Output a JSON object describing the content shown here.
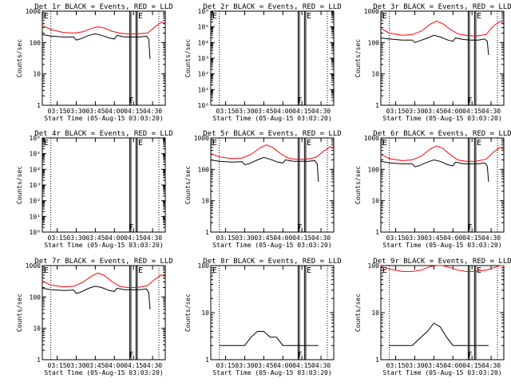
{
  "x_tick_labels": [
    "03:15",
    "03:30",
    "03:45",
    "04:00",
    "04:15",
    "04:30"
  ],
  "x_axis_label": "Start Time (05-Aug-15 03:03:20)",
  "y_axis_label": "Counts/sec",
  "flag_letters": {
    "start": "E",
    "f": "F",
    "end": "E"
  },
  "colors": {
    "events": "#000000",
    "lld": "#ff0000",
    "axes": "#000000"
  },
  "chart_data": [
    {
      "type": "line",
      "title": "Det 1r BLACK = Events, RED = LLD",
      "ylog": true,
      "ylim": [
        1,
        1000
      ],
      "ytick_labels": [
        "1",
        "10",
        "100",
        "1000"
      ],
      "xlim": [
        "03:03:20",
        "04:40:00"
      ],
      "series": [
        {
          "color": "#ff0000",
          "points": [
            [
              "03:03:20",
              350
            ],
            [
              "03:10",
              260
            ],
            [
              "03:20",
              210
            ],
            [
              "03:28",
              200
            ],
            [
              "03:35",
              220
            ],
            [
              "03:42",
              280
            ],
            [
              "03:47",
              320
            ],
            [
              "03:52",
              290
            ],
            [
              "03:58",
              230
            ],
            [
              "04:04",
              200
            ],
            [
              "04:10",
              190
            ],
            [
              "04:18",
              190
            ],
            [
              "04:26",
              200
            ],
            [
              "04:32",
              320
            ],
            [
              "04:37",
              450
            ],
            [
              "04:40",
              400
            ]
          ]
        },
        {
          "color": "#000000",
          "points": [
            [
              "03:03:20",
              180
            ],
            [
              "03:10",
              160
            ],
            [
              "03:20",
              150
            ],
            [
              "03:28",
              150
            ],
            [
              "03:30",
              120
            ],
            [
              "03:33",
              130
            ],
            [
              "03:40",
              170
            ],
            [
              "03:45",
              190
            ],
            [
              "03:50",
              170
            ],
            [
              "03:56",
              140
            ],
            [
              "04:00",
              130
            ],
            [
              "04:02",
              170
            ],
            [
              "04:08",
              150
            ],
            [
              "04:14",
              150
            ],
            [
              "04:20",
              150
            ],
            [
              "04:25",
              160
            ],
            [
              "04:27",
              130
            ],
            [
              "04:28",
              30
            ]
          ]
        }
      ]
    },
    {
      "type": "line",
      "title": "Det 2r BLACK = Events, RED = LLD",
      "ylog": true,
      "ylim": [
        1,
        1000000
      ],
      "ytick_labels": [
        "10⁰",
        "10¹",
        "10²",
        "10³",
        "10⁴",
        "10⁵",
        "10⁶"
      ],
      "xlim": [
        "03:03:20",
        "04:40:00"
      ],
      "series": []
    },
    {
      "type": "line",
      "title": "Det 3r BLACK = Events, RED = LLD",
      "ylog": true,
      "ylim": [
        1,
        1000
      ],
      "ytick_labels": [
        "1",
        "10",
        "100",
        "1000"
      ],
      "xlim": [
        "03:03:20",
        "04:40:00"
      ],
      "series": [
        {
          "color": "#ff0000",
          "points": [
            [
              "03:03:20",
              280
            ],
            [
              "03:10",
              200
            ],
            [
              "03:20",
              170
            ],
            [
              "03:28",
              180
            ],
            [
              "03:35",
              230
            ],
            [
              "03:42",
              380
            ],
            [
              "03:47",
              480
            ],
            [
              "03:52",
              400
            ],
            [
              "03:58",
              260
            ],
            [
              "04:04",
              190
            ],
            [
              "04:10",
              170
            ],
            [
              "04:18",
              160
            ],
            [
              "04:26",
              180
            ],
            [
              "04:32",
              340
            ],
            [
              "04:37",
              470
            ],
            [
              "04:40",
              420
            ]
          ]
        },
        {
          "color": "#000000",
          "points": [
            [
              "03:03:20",
              140
            ],
            [
              "03:10",
              130
            ],
            [
              "03:20",
              120
            ],
            [
              "03:28",
              120
            ],
            [
              "03:30",
              100
            ],
            [
              "03:33",
              110
            ],
            [
              "03:40",
              140
            ],
            [
              "03:45",
              170
            ],
            [
              "03:50",
              150
            ],
            [
              "03:56",
              120
            ],
            [
              "04:00",
              110
            ],
            [
              "04:02",
              140
            ],
            [
              "04:08",
              125
            ],
            [
              "04:14",
              120
            ],
            [
              "04:20",
              120
            ],
            [
              "04:25",
              130
            ],
            [
              "04:27",
              110
            ],
            [
              "04:28",
              40
            ]
          ]
        }
      ]
    },
    {
      "type": "line",
      "title": "Det 4r BLACK = Events, RED = LLD",
      "ylog": true,
      "ylim": [
        1,
        1000000
      ],
      "ytick_labels": [
        "10⁰",
        "10¹",
        "10²",
        "10³",
        "10⁴",
        "10⁵",
        "10⁶"
      ],
      "xlim": [
        "03:03:20",
        "04:40:00"
      ],
      "series": []
    },
    {
      "type": "line",
      "title": "Det 5r BLACK = Events, RED = LLD",
      "ylog": true,
      "ylim": [
        1,
        1000
      ],
      "ytick_labels": [
        "1",
        "10",
        "100",
        "1000"
      ],
      "xlim": [
        "03:03:20",
        "04:40:00"
      ],
      "series": [
        {
          "color": "#ff0000",
          "points": [
            [
              "03:03:20",
              320
            ],
            [
              "03:10",
              250
            ],
            [
              "03:20",
              220
            ],
            [
              "03:28",
              230
            ],
            [
              "03:35",
              300
            ],
            [
              "03:42",
              480
            ],
            [
              "03:47",
              600
            ],
            [
              "03:52",
              500
            ],
            [
              "03:58",
              320
            ],
            [
              "04:04",
              230
            ],
            [
              "04:10",
              210
            ],
            [
              "04:18",
              210
            ],
            [
              "04:26",
              240
            ],
            [
              "04:32",
              380
            ],
            [
              "04:37",
              520
            ],
            [
              "04:40",
              460
            ]
          ]
        },
        {
          "color": "#000000",
          "points": [
            [
              "03:03:20",
              200
            ],
            [
              "03:10",
              180
            ],
            [
              "03:20",
              170
            ],
            [
              "03:28",
              175
            ],
            [
              "03:30",
              140
            ],
            [
              "03:33",
              150
            ],
            [
              "03:40",
              200
            ],
            [
              "03:45",
              240
            ],
            [
              "03:50",
              210
            ],
            [
              "03:56",
              170
            ],
            [
              "04:00",
              160
            ],
            [
              "04:02",
              200
            ],
            [
              "04:08",
              180
            ],
            [
              "04:14",
              180
            ],
            [
              "04:20",
              180
            ],
            [
              "04:25",
              190
            ],
            [
              "04:27",
              150
            ],
            [
              "04:28",
              40
            ]
          ]
        }
      ]
    },
    {
      "type": "line",
      "title": "Det 6r BLACK = Events, RED = LLD",
      "ylog": true,
      "ylim": [
        1,
        1000
      ],
      "ytick_labels": [
        "1",
        "10",
        "100",
        "1000"
      ],
      "xlim": [
        "03:03:20",
        "04:40:00"
      ],
      "series": [
        {
          "color": "#ff0000",
          "points": [
            [
              "03:03:20",
              300
            ],
            [
              "03:10",
              220
            ],
            [
              "03:20",
              190
            ],
            [
              "03:28",
              200
            ],
            [
              "03:35",
              260
            ],
            [
              "03:42",
              440
            ],
            [
              "03:47",
              560
            ],
            [
              "03:52",
              470
            ],
            [
              "03:58",
              290
            ],
            [
              "04:04",
              200
            ],
            [
              "04:10",
              180
            ],
            [
              "04:18",
              180
            ],
            [
              "04:26",
              210
            ],
            [
              "04:32",
              360
            ],
            [
              "04:37",
              500
            ],
            [
              "04:40",
              440
            ]
          ]
        },
        {
          "color": "#000000",
          "points": [
            [
              "03:03:20",
              180
            ],
            [
              "03:10",
              160
            ],
            [
              "03:20",
              150
            ],
            [
              "03:28",
              150
            ],
            [
              "03:30",
              120
            ],
            [
              "03:33",
              130
            ],
            [
              "03:40",
              170
            ],
            [
              "03:45",
              200
            ],
            [
              "03:50",
              180
            ],
            [
              "03:56",
              140
            ],
            [
              "04:00",
              130
            ],
            [
              "04:02",
              170
            ],
            [
              "04:08",
              150
            ],
            [
              "04:14",
              150
            ],
            [
              "04:20",
              150
            ],
            [
              "04:25",
              160
            ],
            [
              "04:27",
              130
            ],
            [
              "04:28",
              40
            ]
          ]
        }
      ]
    },
    {
      "type": "line",
      "title": "Det 7r BLACK = Events, RED = LLD",
      "ylog": true,
      "ylim": [
        1,
        1000
      ],
      "ytick_labels": [
        "1",
        "10",
        "100",
        "1000"
      ],
      "xlim": [
        "03:03:20",
        "04:40:00"
      ],
      "series": [
        {
          "color": "#ff0000",
          "points": [
            [
              "03:03:20",
              320
            ],
            [
              "03:10",
              240
            ],
            [
              "03:20",
              210
            ],
            [
              "03:28",
              220
            ],
            [
              "03:35",
              290
            ],
            [
              "03:42",
              460
            ],
            [
              "03:47",
              580
            ],
            [
              "03:52",
              490
            ],
            [
              "03:58",
              310
            ],
            [
              "04:04",
              220
            ],
            [
              "04:10",
              200
            ],
            [
              "04:18",
              200
            ],
            [
              "04:26",
              230
            ],
            [
              "04:32",
              370
            ],
            [
              "04:37",
              500
            ],
            [
              "04:40",
              450
            ]
          ]
        },
        {
          "color": "#000000",
          "points": [
            [
              "03:03:20",
              190
            ],
            [
              "03:10",
              170
            ],
            [
              "03:20",
              160
            ],
            [
              "03:28",
              165
            ],
            [
              "03:30",
              130
            ],
            [
              "03:33",
              140
            ],
            [
              "03:40",
              190
            ],
            [
              "03:45",
              220
            ],
            [
              "03:50",
              200
            ],
            [
              "03:56",
              160
            ],
            [
              "04:00",
              150
            ],
            [
              "04:02",
              190
            ],
            [
              "04:08",
              170
            ],
            [
              "04:14",
              170
            ],
            [
              "04:20",
              170
            ],
            [
              "04:25",
              180
            ],
            [
              "04:27",
              140
            ],
            [
              "04:28",
              40
            ]
          ]
        }
      ]
    },
    {
      "type": "line",
      "title": "Det 8r BLACK = Events, RED = LLD",
      "ylog": true,
      "ylim": [
        1,
        100
      ],
      "ytick_labels": [
        "1",
        "10",
        "100"
      ],
      "xlim": [
        "03:03:20",
        "04:40:00"
      ],
      "series": [
        {
          "color": "#000000",
          "points": [
            [
              "03:10",
              2
            ],
            [
              "03:20",
              2
            ],
            [
              "03:30",
              2
            ],
            [
              "03:35",
              3
            ],
            [
              "03:40",
              4
            ],
            [
              "03:45",
              4
            ],
            [
              "03:50",
              3
            ],
            [
              "03:55",
              3
            ],
            [
              "04:00",
              2
            ],
            [
              "04:10",
              2
            ],
            [
              "04:20",
              2
            ],
            [
              "04:28",
              2
            ]
          ]
        }
      ]
    },
    {
      "type": "line",
      "title": "Det 9r BLACK = Events, RED = LLD",
      "ylog": true,
      "ylim": [
        1,
        100
      ],
      "ytick_labels": [
        "1",
        "10",
        "100"
      ],
      "xlim": [
        "03:03:20",
        "04:40:00"
      ],
      "series": [
        {
          "color": "#ff0000",
          "points": [
            [
              "03:03:20",
              95
            ],
            [
              "03:10",
              85
            ],
            [
              "03:20",
              75
            ],
            [
              "03:28",
              75
            ],
            [
              "03:35",
              80
            ],
            [
              "03:42",
              95
            ],
            [
              "03:47",
              100
            ],
            [
              "03:52",
              100
            ],
            [
              "03:58",
              90
            ],
            [
              "04:04",
              80
            ],
            [
              "04:10",
              75
            ],
            [
              "04:18",
              75
            ],
            [
              "04:26",
              80
            ],
            [
              "04:32",
              90
            ],
            [
              "04:37",
              100
            ],
            [
              "04:40",
              100
            ]
          ]
        },
        {
          "color": "#000000",
          "points": [
            [
              "03:10",
              2
            ],
            [
              "03:20",
              2
            ],
            [
              "03:28",
              2
            ],
            [
              "03:35",
              3
            ],
            [
              "03:40",
              4
            ],
            [
              "03:45",
              6
            ],
            [
              "03:50",
              5
            ],
            [
              "03:55",
              3
            ],
            [
              "04:00",
              2
            ],
            [
              "04:10",
              2
            ],
            [
              "04:20",
              2
            ],
            [
              "04:28",
              2
            ]
          ]
        }
      ]
    }
  ]
}
